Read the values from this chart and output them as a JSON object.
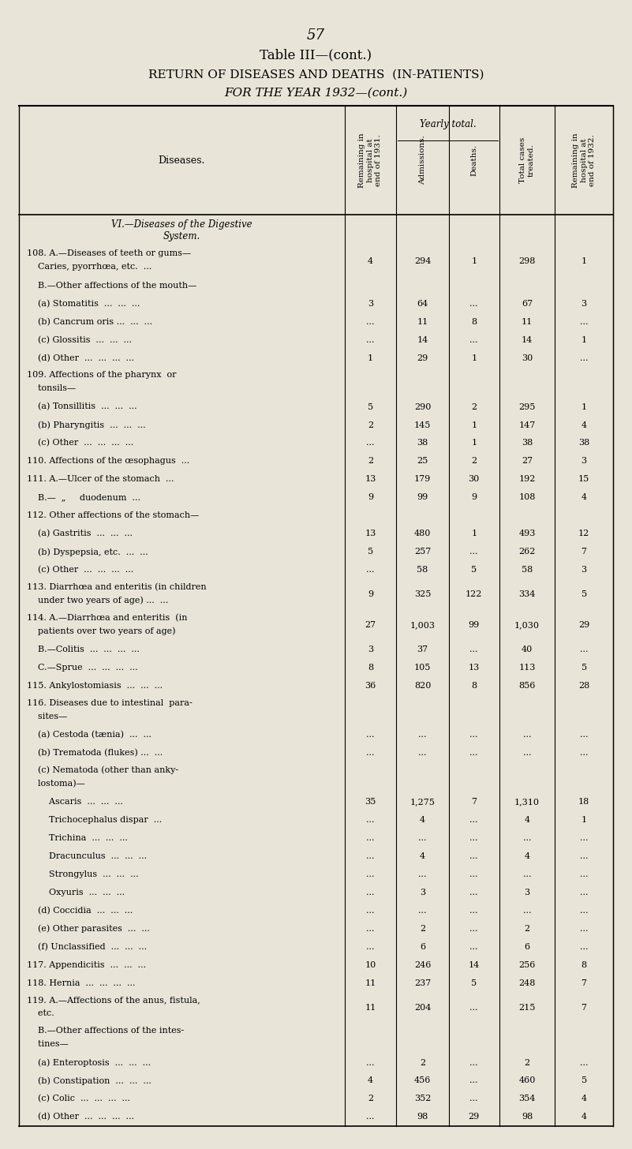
{
  "page_num": "57",
  "table_title": "Table III—(cont.)",
  "subtitle1": "RETURN OF DISEASES AND DEATHS  (IN-PATIENTS)",
  "subtitle2": "FOR THE YEAR 1932—(cont.)",
  "col_headers": [
    "Remaining in\nhospital at\nend of 1931.",
    "Admissions.",
    "Deaths.",
    "Total cases\ntreated.",
    "Remaining in\nhospital at\nend of 1932."
  ],
  "yearly_total_label": "Yearly total.",
  "diseases_col_label": "Diseases.",
  "bg_color": "#e8e4d8",
  "rows": [
    {
      "label": "VI.—Diseases of the Digestive\nSystem.",
      "c1": "",
      "c2": "",
      "c3": "",
      "c4": "",
      "c5": "",
      "section_header": true
    },
    {
      "label": "108. A.—Diseases of teeth or gums—\n    Caries, pyorrhœa, etc.  ...",
      "c1": "4",
      "c2": "294",
      "c3": "1",
      "c4": "298",
      "c5": "1"
    },
    {
      "label": "    B.—Other affections of the mouth—",
      "c1": "",
      "c2": "",
      "c3": "",
      "c4": "",
      "c5": ""
    },
    {
      "label": "    (a) Stomatitis  ...  ...  ...",
      "c1": "3",
      "c2": "64",
      "c3": "...",
      "c4": "67",
      "c5": "3"
    },
    {
      "label": "    (b) Cancrum oris ...  ...  ...",
      "c1": "...",
      "c2": "11",
      "c3": "8",
      "c4": "11",
      "c5": "..."
    },
    {
      "label": "    (c) Glossitis  ...  ...  ...",
      "c1": "...",
      "c2": "14",
      "c3": "...",
      "c4": "14",
      "c5": "1"
    },
    {
      "label": "    (d) Other  ...  ...  ...  ...",
      "c1": "1",
      "c2": "29",
      "c3": "1",
      "c4": "30",
      "c5": "..."
    },
    {
      "label": "109. Affections of the pharynx  or\n    tonsils—",
      "c1": "",
      "c2": "",
      "c3": "",
      "c4": "",
      "c5": ""
    },
    {
      "label": "    (a) Tonsillitis  ...  ...  ...",
      "c1": "5",
      "c2": "290",
      "c3": "2",
      "c4": "295",
      "c5": "1"
    },
    {
      "label": "    (b) Pharyngitis  ...  ...  ...",
      "c1": "2",
      "c2": "145",
      "c3": "1",
      "c4": "147",
      "c5": "4"
    },
    {
      "label": "    (c) Other  ...  ...  ...  ...",
      "c1": "...",
      "c2": "38",
      "c3": "1",
      "c4": "38",
      "c5": "38"
    },
    {
      "label": "110. Affections of the œsophagus  ...",
      "c1": "2",
      "c2": "25",
      "c3": "2",
      "c4": "27",
      "c5": "3"
    },
    {
      "label": "111. A.—Ulcer of the stomach  ...",
      "c1": "13",
      "c2": "179",
      "c3": "30",
      "c4": "192",
      "c5": "15"
    },
    {
      "label": "    B.—  „     duodenum  ...",
      "c1": "9",
      "c2": "99",
      "c3": "9",
      "c4": "108",
      "c5": "4"
    },
    {
      "label": "112. Other affections of the stomach—",
      "c1": "",
      "c2": "",
      "c3": "",
      "c4": "",
      "c5": ""
    },
    {
      "label": "    (a) Gastritis  ...  ...  ...",
      "c1": "13",
      "c2": "480",
      "c3": "1",
      "c4": "493",
      "c5": "12"
    },
    {
      "label": "    (b) Dyspepsia, etc.  ...  ...",
      "c1": "5",
      "c2": "257",
      "c3": "...",
      "c4": "262",
      "c5": "7"
    },
    {
      "label": "    (c) Other  ...  ...  ...  ...",
      "c1": "...",
      "c2": "58",
      "c3": "5",
      "c4": "58",
      "c5": "3"
    },
    {
      "label": "113. Diarrhœa and enteritis (in children\n    under two years of age) ...  ...",
      "c1": "9",
      "c2": "325",
      "c3": "122",
      "c4": "334",
      "c5": "5"
    },
    {
      "label": "114. A.—Diarrhœa and enteritis  (in\n    patients over two years of age)",
      "c1": "27",
      "c2": "1,003",
      "c3": "99",
      "c4": "1,030",
      "c5": "29"
    },
    {
      "label": "    B.—Colitis  ...  ...  ...  ...",
      "c1": "3",
      "c2": "37",
      "c3": "...",
      "c4": "40",
      "c5": "..."
    },
    {
      "label": "    C.—Sprue  ...  ...  ...  ...",
      "c1": "8",
      "c2": "105",
      "c3": "13",
      "c4": "113",
      "c5": "5"
    },
    {
      "label": "115. Ankylostomiasis  ...  ...  ...",
      "c1": "36",
      "c2": "820",
      "c3": "8",
      "c4": "856",
      "c5": "28"
    },
    {
      "label": "116. Diseases due to intestinal  para-\n    sites—",
      "c1": "",
      "c2": "",
      "c3": "",
      "c4": "",
      "c5": ""
    },
    {
      "label": "    (a) Cestoda (tænia)  ...  ...",
      "c1": "...",
      "c2": "...",
      "c3": "...",
      "c4": "...",
      "c5": "..."
    },
    {
      "label": "    (b) Trematoda (flukes) ...  ...",
      "c1": "...",
      "c2": "...",
      "c3": "...",
      "c4": "...",
      "c5": "..."
    },
    {
      "label": "    (c) Nematoda (other than anky-\n    lostoma)—",
      "c1": "",
      "c2": "",
      "c3": "",
      "c4": "",
      "c5": ""
    },
    {
      "label": "        Ascaris  ...  ...  ...",
      "c1": "35",
      "c2": "1,275",
      "c3": "7",
      "c4": "1,310",
      "c5": "18"
    },
    {
      "label": "        Trichocephalus dispar  ...",
      "c1": "...",
      "c2": "4",
      "c3": "...",
      "c4": "4",
      "c5": "1"
    },
    {
      "label": "        Trichina  ...  ...  ...",
      "c1": "...",
      "c2": "...",
      "c3": "...",
      "c4": "...",
      "c5": "..."
    },
    {
      "label": "        Dracunculus  ...  ...  ...",
      "c1": "...",
      "c2": "4",
      "c3": "...",
      "c4": "4",
      "c5": "..."
    },
    {
      "label": "        Strongylus  ...  ...  ...",
      "c1": "...",
      "c2": "...",
      "c3": "...",
      "c4": "...",
      "c5": "..."
    },
    {
      "label": "        Oxyuris  ...  ...  ...",
      "c1": "...",
      "c2": "3",
      "c3": "...",
      "c4": "3",
      "c5": "..."
    },
    {
      "label": "    (d) Coccidia  ...  ...  ...",
      "c1": "...",
      "c2": "...",
      "c3": "...",
      "c4": "...",
      "c5": "..."
    },
    {
      "label": "    (e) Other parasites  ...  ...",
      "c1": "...",
      "c2": "2",
      "c3": "...",
      "c4": "2",
      "c5": "..."
    },
    {
      "label": "    (f) Unclassified  ...  ...  ...",
      "c1": "...",
      "c2": "6",
      "c3": "...",
      "c4": "6",
      "c5": "..."
    },
    {
      "label": "117. Appendicitis  ...  ...  ...",
      "c1": "10",
      "c2": "246",
      "c3": "14",
      "c4": "256",
      "c5": "8"
    },
    {
      "label": "118. Hernia  ...  ...  ...  ...",
      "c1": "11",
      "c2": "237",
      "c3": "5",
      "c4": "248",
      "c5": "7"
    },
    {
      "label": "119. A.—Affections of the anus, fistula,\n    etc.",
      "c1": "11",
      "c2": "204",
      "c3": "...",
      "c4": "215",
      "c5": "7"
    },
    {
      "label": "    B.—Other affections of the intes-\n    tines—",
      "c1": "",
      "c2": "",
      "c3": "",
      "c4": "",
      "c5": ""
    },
    {
      "label": "    (a) Enteroptosis  ...  ...  ...",
      "c1": "...",
      "c2": "2",
      "c3": "...",
      "c4": "2",
      "c5": "..."
    },
    {
      "label": "    (b) Constipation  ...  ...  ...",
      "c1": "4",
      "c2": "456",
      "c3": "...",
      "c4": "460",
      "c5": "5"
    },
    {
      "label": "    (c) Colic  ...  ...  ...  ...",
      "c1": "2",
      "c2": "352",
      "c3": "...",
      "c4": "354",
      "c5": "4"
    },
    {
      "label": "    (d) Other  ...  ...  ...  ...",
      "c1": "...",
      "c2": "98",
      "c3": "29",
      "c4": "98",
      "c5": "4"
    }
  ]
}
